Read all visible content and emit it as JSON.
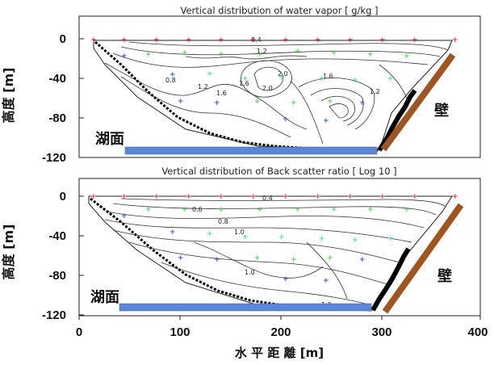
{
  "figure": {
    "ylabel": "高度 [m]",
    "xlabel": "水 平 距 離 [m]",
    "x_ticks": [
      "0",
      "100",
      "200",
      "300",
      "400"
    ],
    "y_ticks": [
      "0",
      "-40",
      "-80",
      "-120"
    ],
    "colors": {
      "lake_surface": "#5b87d6",
      "wall": "#a0541e",
      "contour": "#333333",
      "marker_red": "#ff2a2a",
      "marker_green": "#43e043",
      "marker_blue": "#2a5bff",
      "marker_cyan": "#30e6c8"
    }
  },
  "chart_data": [
    {
      "type": "contour",
      "title": "Vertical distribution of water vapor  [ g/kg ]",
      "xlim": [
        0,
        400
      ],
      "ylim": [
        -120,
        0
      ],
      "lake_label": "湖面",
      "wall_label": "壁",
      "contour_labels": [
        {
          "text": "0.4",
          "x": 185,
          "y": -1
        },
        {
          "text": "1.2",
          "x": 240,
          "y": -7
        },
        {
          "text": "2.0",
          "x": 240,
          "y": -20
        },
        {
          "text": "2.0",
          "x": 230,
          "y": -40
        },
        {
          "text": "1.6",
          "x": 150,
          "y": -22
        },
        {
          "text": "1.6",
          "x": 172,
          "y": -45
        },
        {
          "text": "0.8",
          "x": 110,
          "y": -35
        },
        {
          "text": "1.2",
          "x": 135,
          "y": -60
        },
        {
          "text": "1.6",
          "x": 270,
          "y": -30
        },
        {
          "text": "1.2",
          "x": 330,
          "y": -45
        }
      ]
    },
    {
      "type": "contour",
      "title": "Vertical distribution of Back scatter ratio [ Log 10 ]",
      "xlim": [
        0,
        400
      ],
      "ylim": [
        -120,
        0
      ],
      "lake_label": "湖面",
      "wall_label": "壁",
      "contour_labels": [
        {
          "text": "0.4",
          "x": 230,
          "y": -1
        },
        {
          "text": "0.6",
          "x": 115,
          "y": -10
        },
        {
          "text": "0.8",
          "x": 145,
          "y": -23
        },
        {
          "text": "1.0",
          "x": 160,
          "y": -32
        },
        {
          "text": "1.0",
          "x": 175,
          "y": -95
        },
        {
          "text": "1.0",
          "x": 290,
          "y": -112
        }
      ]
    }
  ]
}
